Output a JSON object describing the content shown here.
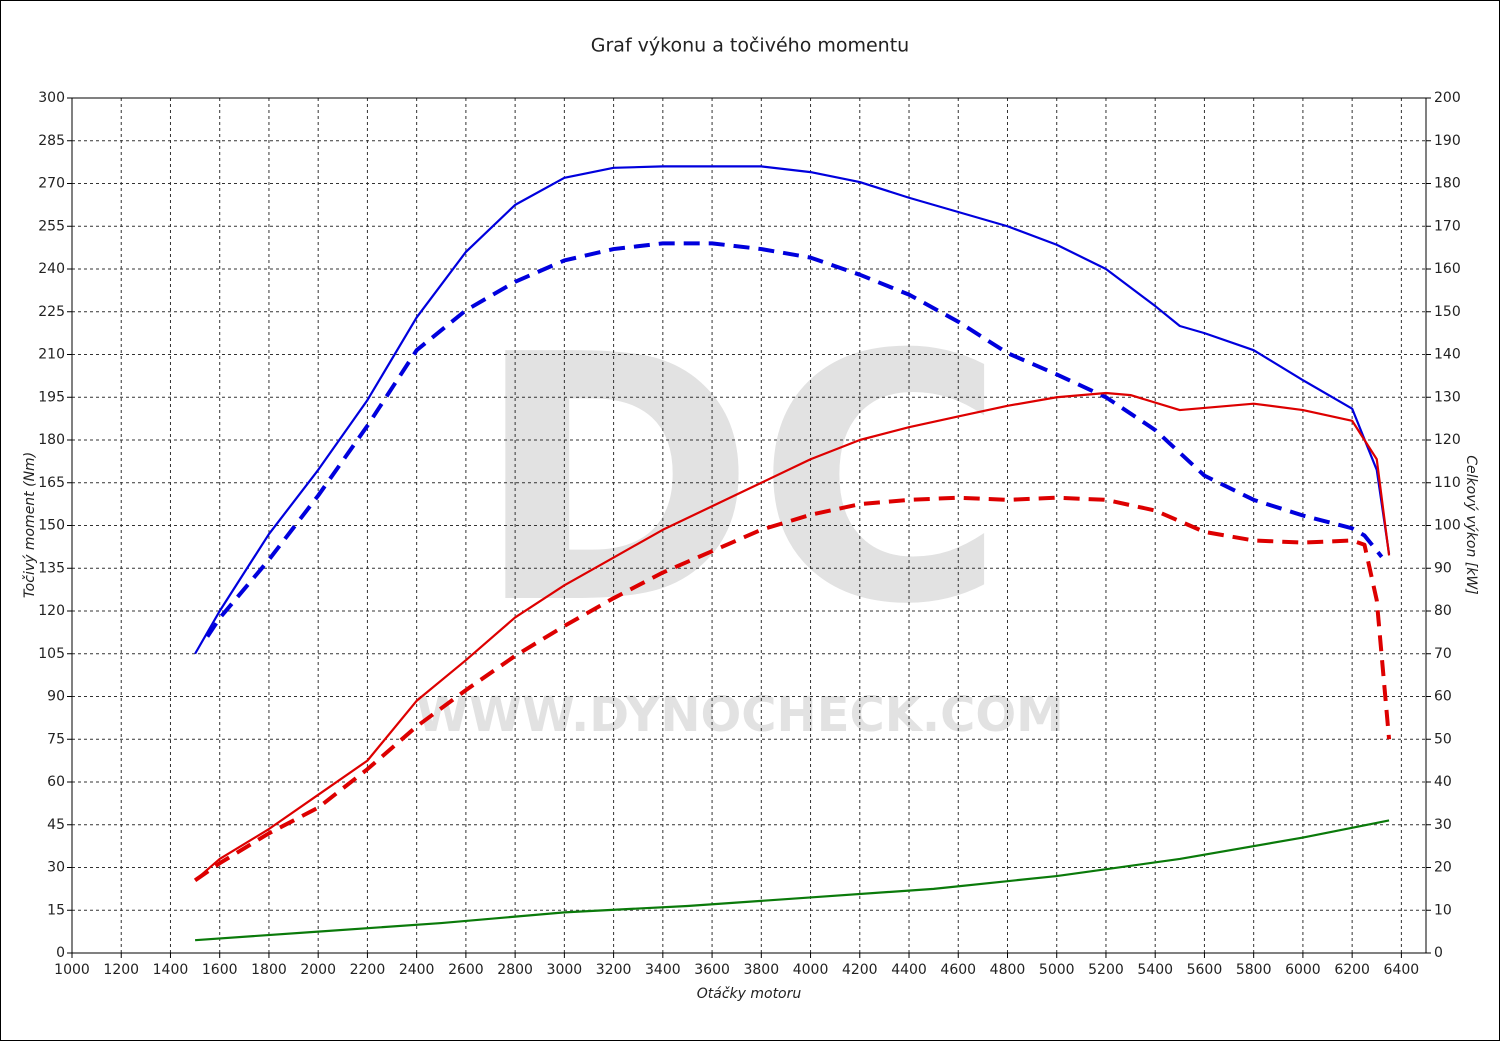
{
  "chart_data": {
    "type": "line",
    "title": "Graf výkonu a točivého momentu",
    "x_label": "Otáčky motoru",
    "y_label": "Točivý moment (Nm)",
    "y2_label": "Celkový výkon [kW]",
    "watermark": "DC",
    "watermark_url": "WWW.DYNOCHECK.COM",
    "xlim": [
      1000,
      6500
    ],
    "xticks": [
      1000,
      1200,
      1400,
      1600,
      1800,
      2000,
      2200,
      2400,
      2600,
      2800,
      3000,
      3200,
      3400,
      3600,
      3800,
      4000,
      4200,
      4400,
      4600,
      4800,
      5000,
      5200,
      5400,
      5600,
      5800,
      6000,
      6200,
      6400
    ],
    "ylim": [
      0,
      300
    ],
    "yticks": [
      0,
      15,
      30,
      45,
      60,
      75,
      90,
      105,
      120,
      135,
      150,
      165,
      180,
      195,
      210,
      225,
      240,
      255,
      270,
      285,
      300
    ],
    "y2lim": [
      0,
      200
    ],
    "y2ticks": [
      0,
      10,
      20,
      30,
      40,
      50,
      60,
      70,
      80,
      90,
      100,
      110,
      120,
      130,
      140,
      150,
      160,
      170,
      180,
      190,
      200
    ],
    "grid": true,
    "series": [
      {
        "color": "#0000dd",
        "dashed": false,
        "axis": "y",
        "x": [
          1500,
          1600,
          1800,
          2000,
          2200,
          2400,
          2600,
          2800,
          3000,
          3200,
          3400,
          3600,
          3800,
          4000,
          4200,
          4400,
          4600,
          4800,
          5000,
          5200,
          5400,
          5500,
          5600,
          5800,
          6000,
          6200,
          6300,
          6350
        ],
        "values": [
          105,
          120,
          147,
          169.5,
          194,
          223,
          246,
          262.5,
          272,
          275.5,
          276,
          276,
          276,
          274,
          270.5,
          265,
          260,
          255,
          248.5,
          240,
          227,
          220,
          217.5,
          211.5,
          201,
          191,
          169.5,
          140
        ]
      },
      {
        "color": "#0000dd",
        "dashed": true,
        "axis": "y",
        "x": [
          1550,
          1600,
          1800,
          2000,
          2200,
          2400,
          2600,
          2800,
          3000,
          3200,
          3400,
          3600,
          3800,
          4000,
          4200,
          4400,
          4600,
          4800,
          5000,
          5200,
          5400,
          5600,
          5800,
          6000,
          6200,
          6250,
          6320
        ],
        "values": [
          111,
          117.5,
          138,
          160.5,
          185,
          211.5,
          225.5,
          235.5,
          243,
          247,
          249,
          249,
          247,
          244,
          238,
          231,
          221.5,
          210.5,
          203,
          195,
          183.5,
          167.5,
          159,
          153.5,
          149,
          146.5,
          139
        ]
      },
      {
        "color": "#dd0000",
        "dashed": false,
        "axis": "y2",
        "x": [
          1500,
          1600,
          1800,
          2000,
          2200,
          2400,
          2600,
          2800,
          3000,
          3200,
          3400,
          3600,
          3800,
          4000,
          4200,
          4400,
          4600,
          4800,
          5000,
          5200,
          5300,
          5500,
          5600,
          5800,
          6000,
          6200,
          6300,
          6350
        ],
        "values": [
          17,
          22,
          29,
          37,
          45,
          59,
          68.5,
          78.5,
          86,
          92.5,
          99,
          104.5,
          110,
          115.5,
          120,
          123,
          125.5,
          128,
          130,
          131,
          130.5,
          127,
          127.5,
          128.5,
          127,
          124.5,
          115.5,
          93
        ]
      },
      {
        "color": "#dd0000",
        "dashed": true,
        "axis": "y2",
        "x": [
          1500,
          1600,
          1800,
          2000,
          2200,
          2400,
          2600,
          2800,
          3000,
          3200,
          3400,
          3600,
          3800,
          4000,
          4200,
          4400,
          4600,
          4800,
          5000,
          5200,
          5400,
          5600,
          5800,
          6000,
          6200,
          6250,
          6300,
          6350
        ],
        "values": [
          17,
          21,
          28,
          34,
          43,
          53,
          61.5,
          69.5,
          76.5,
          83,
          89,
          94,
          99,
          102.5,
          105,
          106,
          106.5,
          106,
          106.5,
          106,
          103.5,
          98.5,
          96.5,
          96,
          96.5,
          95.5,
          82.5,
          50
        ]
      },
      {
        "color": "#0a7a0a",
        "dashed": false,
        "axis": "y2",
        "x": [
          1500,
          2000,
          2500,
          3000,
          3500,
          4000,
          4500,
          5000,
          5500,
          6000,
          6350
        ],
        "values": [
          3,
          5,
          7,
          9.5,
          11,
          13,
          15,
          18,
          22,
          27,
          31
        ]
      }
    ]
  }
}
